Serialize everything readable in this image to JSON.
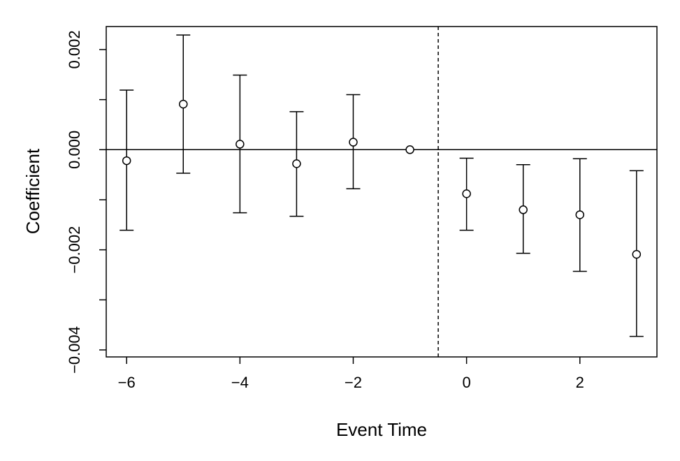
{
  "chart_data": {
    "type": "scatter",
    "title": "",
    "xlabel": "Event Time",
    "ylabel": "Coefficient",
    "xlim": [
      -6.36,
      3.36
    ],
    "ylim": [
      -0.00414,
      0.00246
    ],
    "x_ticks": [
      -6,
      -4,
      -2,
      0,
      2
    ],
    "x_tick_labels": [
      "−6",
      "−4",
      "−2",
      "0",
      "2"
    ],
    "y_ticks": [
      -0.004,
      -0.003,
      -0.002,
      -0.001,
      0.0,
      0.001,
      0.002
    ],
    "y_tick_labels": [
      "−0.004",
      "",
      "−0.002",
      "",
      "0.000",
      "",
      "0.002"
    ],
    "reference_hline": 0,
    "reference_vline": -0.5,
    "grid": false,
    "series": [
      {
        "marker": "open-circle",
        "error_bars": true,
        "x": [
          -6,
          -5,
          -4,
          -3,
          -2,
          -1,
          0,
          1,
          2,
          3
        ],
        "y": [
          -0.00022,
          0.00091,
          0.00011,
          -0.00028,
          0.00015,
          0.0,
          -0.00088,
          -0.0012,
          -0.0013,
          -0.00209
        ],
        "lower": [
          -0.00161,
          -0.00047,
          -0.00126,
          -0.00133,
          -0.00078,
          null,
          -0.00161,
          -0.00207,
          -0.00243,
          -0.00373
        ],
        "upper": [
          0.00119,
          0.00229,
          0.00149,
          0.00076,
          0.0011,
          null,
          -0.00017,
          -0.0003,
          -0.00018,
          -0.00042
        ]
      }
    ]
  }
}
